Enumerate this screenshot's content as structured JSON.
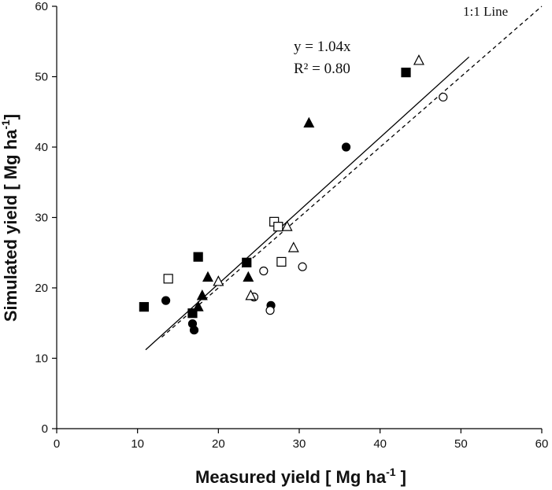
{
  "chart_data": {
    "type": "scatter",
    "xlabel": "Measured yield [ Mg ha",
    "xlabel_sup": "-1",
    "xlabel_end": " ]",
    "ylabel": "Simulated yield [ Mg ha",
    "ylabel_sup": "-1",
    "ylabel_end": "]",
    "xlim": [
      0,
      60
    ],
    "ylim": [
      0,
      60
    ],
    "xticks": [
      0,
      10,
      20,
      30,
      40,
      50,
      60
    ],
    "yticks": [
      0,
      10,
      20,
      30,
      40,
      50,
      60
    ],
    "grid": false,
    "legend": "none",
    "annotations": {
      "equation": "y = 1.04x",
      "r2_label": "R² = 0.80",
      "one_to_one": "1:1 Line"
    },
    "lines": [
      {
        "name": "regression",
        "style": "solid",
        "x": [
          11,
          51
        ],
        "y": [
          11.2,
          52.8
        ]
      },
      {
        "name": "1:1 line",
        "style": "dashed",
        "x": [
          13,
          60
        ],
        "y": [
          13,
          60
        ]
      }
    ],
    "series": [
      {
        "name": "filled circle",
        "marker": "circle",
        "filled": true,
        "points": [
          [
            13.5,
            18.2
          ],
          [
            16.8,
            14.9
          ],
          [
            17,
            14
          ],
          [
            26.5,
            17.5
          ],
          [
            35.8,
            40
          ]
        ]
      },
      {
        "name": "filled square",
        "marker": "square",
        "filled": true,
        "points": [
          [
            10.8,
            17.3
          ],
          [
            16.8,
            16.4
          ],
          [
            17.5,
            24.4
          ],
          [
            23.5,
            23.6
          ],
          [
            43.2,
            50.6
          ]
        ]
      },
      {
        "name": "filled triangle",
        "marker": "triangle",
        "filled": true,
        "points": [
          [
            17.5,
            17.3
          ],
          [
            18,
            18.9
          ],
          [
            18.7,
            21.5
          ],
          [
            23.7,
            21.5
          ],
          [
            31.2,
            43.4
          ]
        ]
      },
      {
        "name": "open circle",
        "marker": "circle",
        "filled": false,
        "points": [
          [
            24.4,
            18.7
          ],
          [
            25.6,
            22.4
          ],
          [
            26.4,
            16.8
          ],
          [
            30.4,
            23
          ],
          [
            47.8,
            47.1
          ]
        ]
      },
      {
        "name": "open square",
        "marker": "square",
        "filled": false,
        "points": [
          [
            13.8,
            21.3
          ],
          [
            26.9,
            29.4
          ],
          [
            27.4,
            28.7
          ],
          [
            27.8,
            23.7
          ]
        ]
      },
      {
        "name": "open triangle",
        "marker": "triangle",
        "filled": false,
        "points": [
          [
            20,
            20.9
          ],
          [
            24,
            18.9
          ],
          [
            28.5,
            28.7
          ],
          [
            29.3,
            25.7
          ],
          [
            44.8,
            52.3
          ]
        ]
      }
    ]
  }
}
